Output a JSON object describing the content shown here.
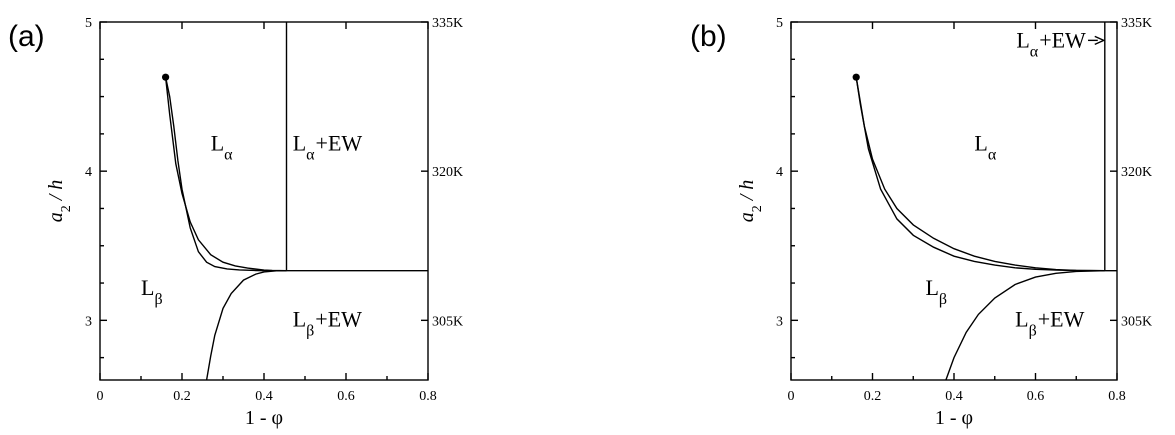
{
  "figure": {
    "panels": [
      {
        "tag": "(a)"
      },
      {
        "tag": "(b)"
      }
    ]
  },
  "chart_data": [
    {
      "type": "line",
      "panel": "(a)",
      "xlabel": "1 - φ",
      "ylabel": "a2 / h",
      "ylabel_main": "a",
      "ylabel_sub": "2",
      "ylabel_rest": " / h",
      "xlim": [
        0,
        0.8
      ],
      "ylim": [
        2.6,
        5.0
      ],
      "x_ticks": [
        0,
        0.2,
        0.4,
        0.6,
        0.8
      ],
      "x_tick_labels": [
        "0",
        "0.2",
        "0.4",
        "0.6",
        "0.8"
      ],
      "y_ticks": [
        3,
        4,
        5
      ],
      "y_tick_labels": [
        "3",
        "4",
        "5"
      ],
      "right_ticks": [
        {
          "y": 3.0,
          "label": "305K"
        },
        {
          "y": 4.0,
          "label": "320K"
        },
        {
          "y": 5.0,
          "label": "335K"
        }
      ],
      "critical_point": {
        "x": 0.16,
        "y": 4.63
      },
      "series": [
        {
          "x": [
            0.16,
            0.17,
            0.185,
            0.2,
            0.22,
            0.24,
            0.27,
            0.3,
            0.33,
            0.36,
            0.4,
            0.42,
            0.455
          ],
          "y": [
            4.63,
            4.38,
            4.05,
            3.85,
            3.66,
            3.54,
            3.44,
            3.39,
            3.365,
            3.35,
            3.337,
            3.334,
            3.333
          ]
        },
        {
          "x": [
            0.16,
            0.17,
            0.18,
            0.19,
            0.2,
            0.22,
            0.24,
            0.26,
            0.28,
            0.31,
            0.34,
            0.38,
            0.41,
            0.455
          ],
          "y": [
            4.63,
            4.5,
            4.3,
            4.07,
            3.88,
            3.62,
            3.46,
            3.39,
            3.36,
            3.345,
            3.338,
            3.334,
            3.333,
            3.333
          ]
        },
        {
          "x": [
            0.26,
            0.27,
            0.28,
            0.3,
            0.32,
            0.35,
            0.38,
            0.4,
            0.43,
            0.455
          ],
          "y": [
            2.6,
            2.76,
            2.9,
            3.08,
            3.18,
            3.27,
            3.31,
            3.325,
            3.332,
            3.333
          ]
        },
        {
          "x": [
            0.455,
            0.8
          ],
          "y": [
            3.333,
            3.333
          ]
        },
        {
          "x": [
            0.455,
            0.455
          ],
          "y": [
            3.333,
            5.0
          ]
        }
      ],
      "regions": [
        {
          "name": "alpha",
          "base": "L",
          "sub": "α",
          "rest": "",
          "x": 0.27,
          "y": 4.14
        },
        {
          "name": "alpha-ew",
          "base": "L",
          "sub": "α",
          "rest": "+EW",
          "x": 0.47,
          "y": 4.14
        },
        {
          "name": "beta",
          "base": "L",
          "sub": "β",
          "rest": "",
          "x": 0.1,
          "y": 3.17
        },
        {
          "name": "beta-ew",
          "base": "L",
          "sub": "β",
          "rest": "+EW",
          "x": 0.47,
          "y": 2.96
        }
      ]
    },
    {
      "type": "line",
      "panel": "(b)",
      "xlabel": "1 - φ",
      "ylabel": "a2 / h",
      "ylabel_main": "a",
      "ylabel_sub": "2",
      "ylabel_rest": " / h",
      "xlim": [
        0,
        0.8
      ],
      "ylim": [
        2.6,
        5.0
      ],
      "x_ticks": [
        0,
        0.2,
        0.4,
        0.6,
        0.8
      ],
      "x_tick_labels": [
        "0",
        "0.2",
        "0.4",
        "0.6",
        "0.8"
      ],
      "y_ticks": [
        3,
        4,
        5
      ],
      "y_tick_labels": [
        "3",
        "4",
        "5"
      ],
      "right_ticks": [
        {
          "y": 3.0,
          "label": "305K"
        },
        {
          "y": 4.0,
          "label": "320K"
        },
        {
          "y": 5.0,
          "label": "335K"
        }
      ],
      "critical_point": {
        "x": 0.16,
        "y": 4.63
      },
      "series": [
        {
          "x": [
            0.16,
            0.18,
            0.2,
            0.23,
            0.26,
            0.3,
            0.35,
            0.4,
            0.45,
            0.5,
            0.55,
            0.6,
            0.65,
            0.7,
            0.77
          ],
          "y": [
            4.63,
            4.3,
            4.08,
            3.88,
            3.75,
            3.64,
            3.55,
            3.48,
            3.43,
            3.395,
            3.37,
            3.352,
            3.34,
            3.335,
            3.333
          ]
        },
        {
          "x": [
            0.16,
            0.17,
            0.19,
            0.22,
            0.26,
            0.3,
            0.35,
            0.4,
            0.45,
            0.5,
            0.55,
            0.6,
            0.65,
            0.7,
            0.77
          ],
          "y": [
            4.63,
            4.45,
            4.15,
            3.88,
            3.68,
            3.57,
            3.49,
            3.43,
            3.395,
            3.37,
            3.352,
            3.342,
            3.337,
            3.334,
            3.333
          ]
        },
        {
          "x": [
            0.38,
            0.4,
            0.43,
            0.46,
            0.5,
            0.55,
            0.6,
            0.65,
            0.7,
            0.77
          ],
          "y": [
            2.6,
            2.75,
            2.92,
            3.04,
            3.15,
            3.24,
            3.29,
            3.315,
            3.328,
            3.333
          ]
        },
        {
          "x": [
            0.77,
            0.8
          ],
          "y": [
            3.333,
            3.333
          ]
        },
        {
          "x": [
            0.77,
            0.77
          ],
          "y": [
            3.333,
            5.0
          ]
        }
      ],
      "regions": [
        {
          "name": "alpha",
          "base": "L",
          "sub": "α",
          "rest": "",
          "x": 0.45,
          "y": 4.14
        },
        {
          "name": "beta",
          "base": "L",
          "sub": "β",
          "rest": "",
          "x": 0.33,
          "y": 3.17
        },
        {
          "name": "beta-ew",
          "base": "L",
          "sub": "β",
          "rest": "+EW",
          "x": 0.55,
          "y": 2.96
        },
        {
          "name": "alpha-ew",
          "base": "L",
          "sub": "α",
          "rest": "+EW",
          "x": 0.553,
          "y": 4.83,
          "arrow": true
        }
      ]
    }
  ]
}
